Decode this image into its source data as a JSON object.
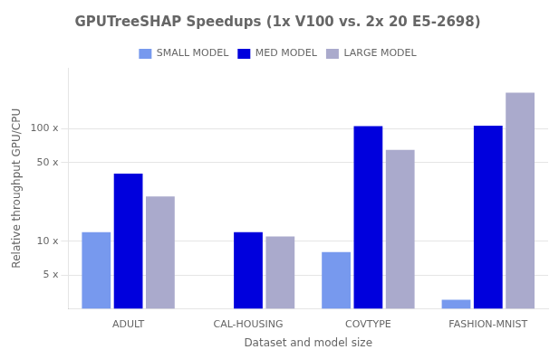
{
  "chart_data": {
    "type": "bar",
    "title": "GPUTreeSHAP Speedups (1x V100 vs. 2x 20 E5-2698)",
    "xlabel": "Dataset and model size",
    "ylabel": "Relative throughput GPU/CPU",
    "categories": [
      "ADULT",
      "CAL-HOUSING",
      "COVTYPE",
      "FASHION-MNIST"
    ],
    "series": [
      {
        "name": "SMALL MODEL",
        "color": "#7799ee",
        "values": [
          12,
          null,
          8,
          3
        ]
      },
      {
        "name": "MED MODEL",
        "color": "#0000dd",
        "values": [
          40,
          12,
          106,
          107
        ]
      },
      {
        "name": "LARGE MODEL",
        "color": "#aaaacc",
        "values": [
          25,
          11,
          65,
          210
        ]
      }
    ],
    "log": "y",
    "ylim": [
      2.5,
      350
    ],
    "yticks": [
      {
        "value": 5,
        "label": "5 x"
      },
      {
        "value": 10,
        "label": "10 x"
      },
      {
        "value": 50,
        "label": "50 x"
      },
      {
        "value": 100,
        "label": "100 x"
      }
    ],
    "grid": "y",
    "legend": "top"
  }
}
